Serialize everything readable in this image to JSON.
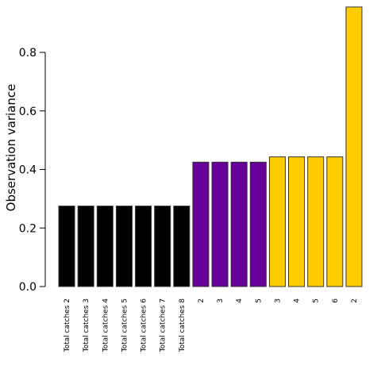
{
  "chart_data": {
    "type": "bar",
    "title": "",
    "xlabel": "",
    "ylabel": "Observation variance",
    "ylim": [
      0,
      0.96
    ],
    "yticks": [
      "0.0",
      "0.2",
      "0.4",
      "0.6",
      "0.8"
    ],
    "ytick_values": [
      0,
      0.2,
      0.4,
      0.6,
      0.8
    ],
    "grid": false,
    "categories": [
      "Total catches 2",
      "Total catches 3",
      "Total catches 4",
      "Total catches 5",
      "Total catches 6",
      "Total catches 7",
      "Total catches 8",
      "2",
      "3",
      "4",
      "5",
      "3",
      "4",
      "5",
      "6",
      "2"
    ],
    "values": [
      0.275,
      0.275,
      0.275,
      0.275,
      0.275,
      0.275,
      0.275,
      0.425,
      0.425,
      0.425,
      0.425,
      0.443,
      0.443,
      0.443,
      0.443,
      0.955
    ],
    "bar_colors": [
      "#000000",
      "#000000",
      "#000000",
      "#000000",
      "#000000",
      "#000000",
      "#000000",
      "#660099",
      "#660099",
      "#660099",
      "#660099",
      "#ffcc00",
      "#ffcc00",
      "#ffcc00",
      "#ffcc00",
      "#ffcc00"
    ],
    "bar_edge_color": "#333333",
    "axis_color": "#000000"
  }
}
